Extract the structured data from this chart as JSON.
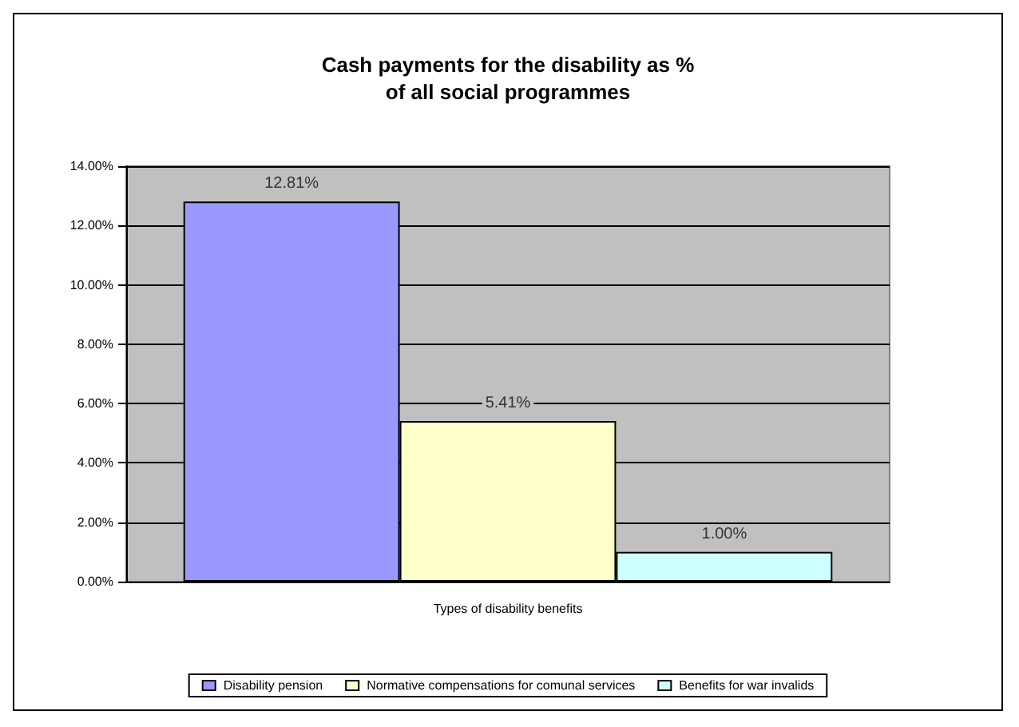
{
  "chart_data": {
    "type": "bar",
    "title": "Cash payments for the disability as %\nof all social programmes",
    "xlabel": "Types of disability benefits",
    "categories": [
      null
    ],
    "series": [
      {
        "name": "Disability pension",
        "color": "#9999ff",
        "values": [
          12.81
        ],
        "value_labels": [
          "12.81%"
        ]
      },
      {
        "name": "Normative compensations for comunal services",
        "color": "#ffffcc",
        "values": [
          5.41
        ],
        "value_labels": [
          "5.41%"
        ]
      },
      {
        "name": "Benefits for war invalids",
        "color": "#ccffff",
        "values": [
          1.0
        ],
        "value_labels": [
          "1.00%"
        ]
      }
    ],
    "ylim": [
      0,
      14
    ],
    "yticks": [
      {
        "value": 0,
        "label": "0.00%"
      },
      {
        "value": 2,
        "label": "2.00%"
      },
      {
        "value": 4,
        "label": "4.00%"
      },
      {
        "value": 6,
        "label": "6.00%"
      },
      {
        "value": 8,
        "label": "8.00%"
      },
      {
        "value": 10,
        "label": "10.00%"
      },
      {
        "value": 12,
        "label": "12.00%"
      },
      {
        "value": 14,
        "label": "14.00%"
      }
    ],
    "grid": "y",
    "legend": "bottom"
  }
}
